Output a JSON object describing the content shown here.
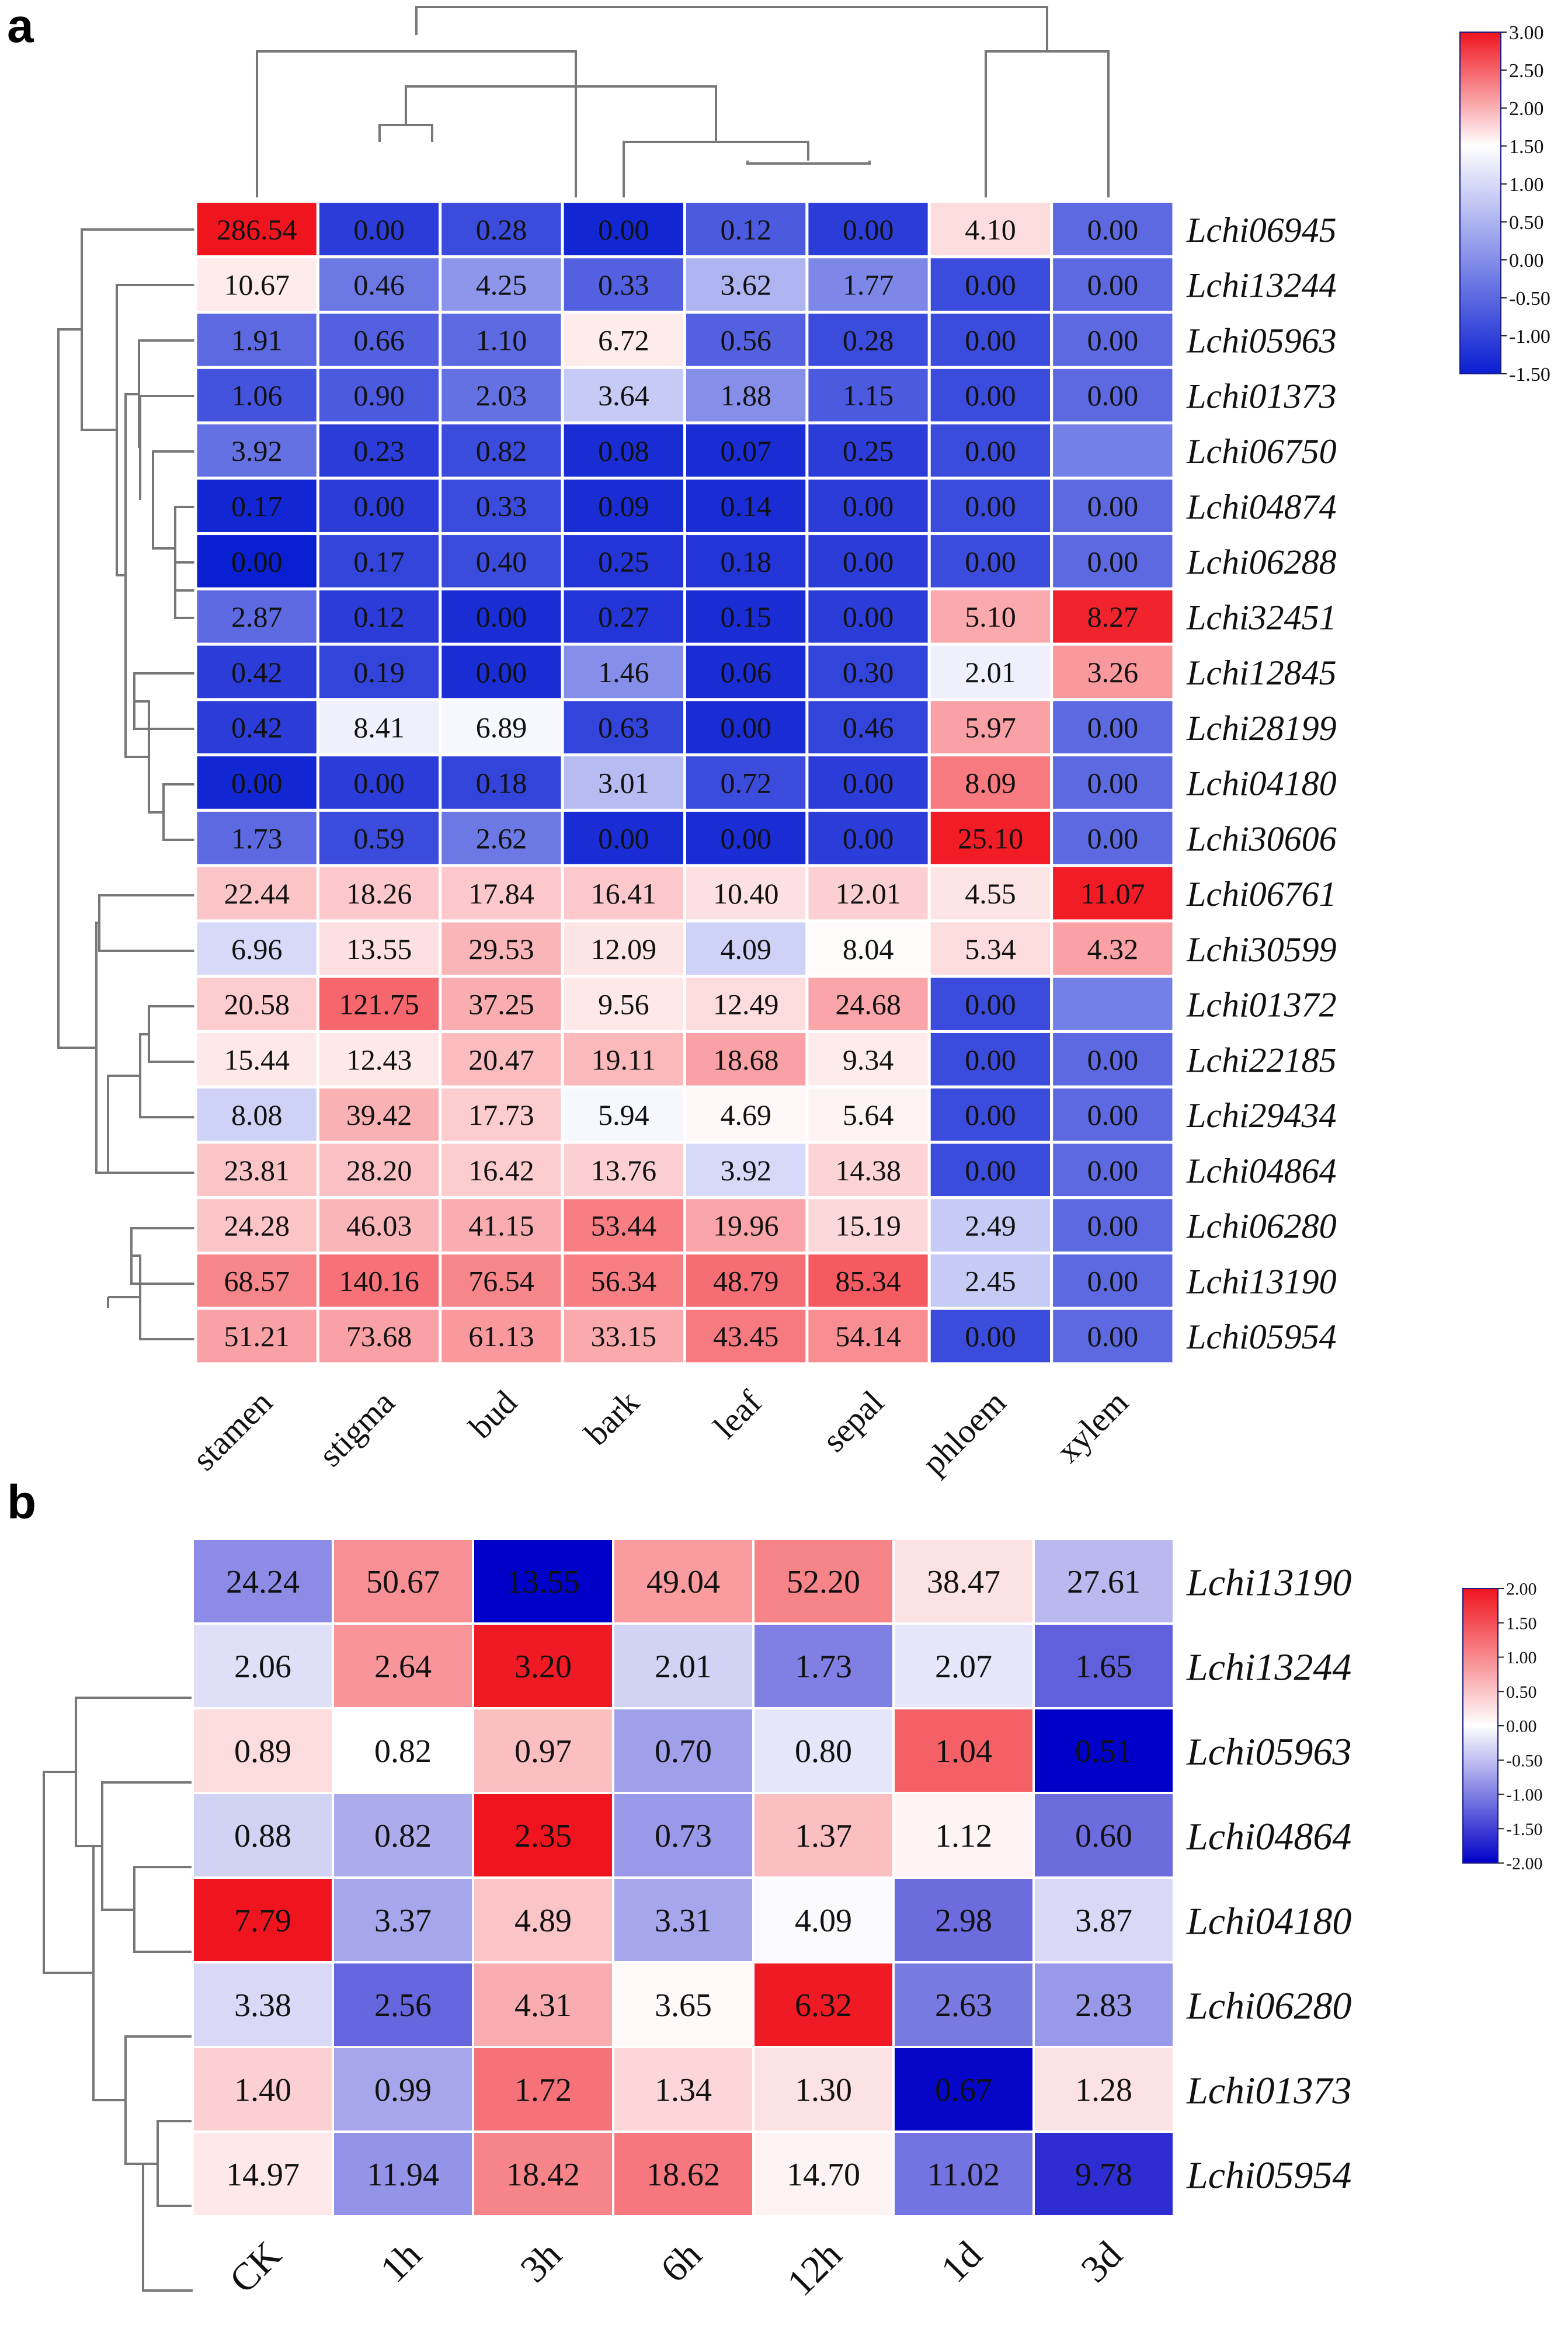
{
  "figure": {
    "panel_a_label": "a",
    "panel_b_label": "b"
  },
  "chart_data": [
    {
      "panel": "a",
      "type": "heatmap",
      "title": "",
      "columns": [
        "stamen",
        "stigma",
        "bud",
        "bark",
        "leaf",
        "sepal",
        "phloem",
        "xylem"
      ],
      "rows": [
        "Lchi06945",
        "Lchi13244",
        "Lchi05963",
        "Lchi01373",
        "Lchi06750",
        "Lchi04874",
        "Lchi06288",
        "Lchi32451",
        "Lchi12845",
        "Lchi28199",
        "Lchi04180",
        "Lchi30606",
        "Lchi06761",
        "Lchi30599",
        "Lchi01372",
        "Lchi22185",
        "Lchi29434",
        "Lchi04864",
        "Lchi06280",
        "Lchi13190",
        "Lchi05954"
      ],
      "labels": [
        [
          "286.54",
          "0.00",
          "0.28",
          "0.00",
          "0.12",
          "0.00",
          "4.10",
          "0.00"
        ],
        [
          "10.67",
          "0.46",
          "4.25",
          "0.33",
          "3.62",
          "1.77",
          "0.00",
          "0.00"
        ],
        [
          "1.91",
          "0.66",
          "1.10",
          "6.72",
          "0.56",
          "0.28",
          "0.00",
          "0.00"
        ],
        [
          "1.06",
          "0.90",
          "2.03",
          "3.64",
          "1.88",
          "1.15",
          "0.00",
          "0.00"
        ],
        [
          "3.92",
          "0.23",
          "0.82",
          "0.08",
          "0.07",
          "0.25",
          "0.00",
          ""
        ],
        [
          "0.17",
          "0.00",
          "0.33",
          "0.09",
          "0.14",
          "0.00",
          "0.00",
          "0.00"
        ],
        [
          "0.00",
          "0.17",
          "0.40",
          "0.25",
          "0.18",
          "0.00",
          "0.00",
          "0.00"
        ],
        [
          "2.87",
          "0.12",
          "0.00",
          "0.27",
          "0.15",
          "0.00",
          "5.10",
          "8.27"
        ],
        [
          "0.42",
          "0.19",
          "0.00",
          "1.46",
          "0.06",
          "0.30",
          "2.01",
          "3.26"
        ],
        [
          "0.42",
          "8.41",
          "6.89",
          "0.63",
          "0.00",
          "0.46",
          "5.97",
          "0.00"
        ],
        [
          "0.00",
          "0.00",
          "0.18",
          "3.01",
          "0.72",
          "0.00",
          "8.09",
          "0.00"
        ],
        [
          "1.73",
          "0.59",
          "2.62",
          "0.00",
          "0.00",
          "0.00",
          "25.10",
          "0.00"
        ],
        [
          "22.44",
          "18.26",
          "17.84",
          "16.41",
          "10.40",
          "12.01",
          "4.55",
          "11.07"
        ],
        [
          "6.96",
          "13.55",
          "29.53",
          "12.09",
          "4.09",
          "8.04",
          "5.34",
          "4.32"
        ],
        [
          "20.58",
          "121.75",
          "37.25",
          "9.56",
          "12.49",
          "24.68",
          "0.00",
          ""
        ],
        [
          "15.44",
          "12.43",
          "20.47",
          "19.11",
          "18.68",
          "9.34",
          "0.00",
          "0.00"
        ],
        [
          "8.08",
          "39.42",
          "17.73",
          "5.94",
          "4.69",
          "5.64",
          "0.00",
          "0.00"
        ],
        [
          "23.81",
          "28.20",
          "16.42",
          "13.76",
          "3.92",
          "14.38",
          "0.00",
          "0.00"
        ],
        [
          "24.28",
          "46.03",
          "41.15",
          "53.44",
          "19.96",
          "15.19",
          "2.49",
          "0.00"
        ],
        [
          "68.57",
          "140.16",
          "76.54",
          "56.34",
          "48.79",
          "85.34",
          "2.45",
          "0.00"
        ],
        [
          "51.21",
          "73.68",
          "61.13",
          "33.15",
          "43.45",
          "54.14",
          "0.00",
          "0.00"
        ]
      ],
      "scaled_values": [
        [
          3.0,
          -1.3,
          -1.2,
          -1.45,
          -1.1,
          -1.3,
          0.45,
          -1.0
        ],
        [
          0.25,
          -0.9,
          -0.7,
          -1.05,
          -0.5,
          -0.8,
          -1.2,
          -1.0
        ],
        [
          -1.0,
          -1.05,
          -1.0,
          0.25,
          -1.05,
          -1.2,
          -1.2,
          -1.0
        ],
        [
          -1.15,
          -1.1,
          -0.95,
          -0.35,
          -0.75,
          -1.1,
          -1.2,
          -1.0
        ],
        [
          -0.95,
          -1.3,
          -1.2,
          -1.4,
          -1.4,
          -1.3,
          -1.2,
          -0.85
        ],
        [
          -1.45,
          -1.3,
          -1.2,
          -1.4,
          -1.4,
          -1.3,
          -1.2,
          -1.0
        ],
        [
          -1.5,
          -1.25,
          -1.2,
          -1.35,
          -1.35,
          -1.3,
          -1.2,
          -1.0
        ],
        [
          -1.0,
          -1.3,
          -1.4,
          -1.35,
          -1.4,
          -1.3,
          1.1,
          2.8
        ],
        [
          -1.3,
          -1.25,
          -1.4,
          -0.75,
          -1.4,
          -1.25,
          -0.1,
          1.3
        ],
        [
          -1.3,
          -0.1,
          -0.05,
          -1.25,
          -1.4,
          -1.25,
          1.2,
          -1.0
        ],
        [
          -1.45,
          -1.3,
          -1.25,
          -0.45,
          -1.2,
          -1.3,
          1.7,
          -1.0
        ],
        [
          -1.0,
          -1.2,
          -0.9,
          -1.4,
          -1.4,
          -1.3,
          2.9,
          -1.0
        ],
        [
          0.75,
          0.7,
          0.7,
          0.7,
          0.4,
          0.6,
          0.35,
          2.9
        ],
        [
          -0.25,
          0.4,
          0.95,
          0.35,
          -0.3,
          0.05,
          0.45,
          1.2
        ],
        [
          0.65,
          1.95,
          1.05,
          0.3,
          0.45,
          1.15,
          -1.2,
          -0.85
        ],
        [
          0.3,
          0.3,
          0.85,
          0.9,
          1.2,
          0.25,
          -1.2,
          -1.0
        ],
        [
          -0.3,
          1.0,
          0.65,
          -0.05,
          0.1,
          0.15,
          -1.2,
          -1.0
        ],
        [
          0.75,
          0.8,
          0.65,
          0.6,
          -0.25,
          0.55,
          -1.2,
          -1.0
        ],
        [
          0.75,
          0.95,
          1.05,
          1.65,
          1.15,
          0.5,
          -0.35,
          -1.0
        ],
        [
          1.55,
          1.8,
          1.55,
          1.65,
          1.85,
          2.1,
          -0.35,
          -1.0
        ],
        [
          1.2,
          1.2,
          1.3,
          1.1,
          1.7,
          1.45,
          -1.2,
          -1.0
        ]
      ],
      "colorbar": {
        "min": -1.5,
        "max": 3.0,
        "ticks": [
          "3.00",
          "2.50",
          "2.00",
          "1.50",
          "1.00",
          "0.50",
          "0.00",
          "-0.50",
          "-1.00",
          "-1.50"
        ],
        "colors": {
          "low": "#0a1ed2",
          "mid": "#ffffff",
          "high": "#f0141e"
        }
      },
      "column_dendrogram": true,
      "row_dendrogram": true
    },
    {
      "panel": "b",
      "type": "heatmap",
      "title": "",
      "columns": [
        "CK",
        "1h",
        "3h",
        "6h",
        "12h",
        "1d",
        "3d"
      ],
      "rows": [
        "Lchi13190",
        "Lchi13244",
        "Lchi05963",
        "Lchi04864",
        "Lchi04180",
        "Lchi06280",
        "Lchi01373",
        "Lchi05954"
      ],
      "labels": [
        [
          "24.24",
          "50.67",
          "13.55",
          "49.04",
          "52.20",
          "38.47",
          "27.61"
        ],
        [
          "2.06",
          "2.64",
          "3.20",
          "2.01",
          "1.73",
          "2.07",
          "1.65"
        ],
        [
          "0.89",
          "0.82",
          "0.97",
          "0.70",
          "0.80",
          "1.04",
          "0.51"
        ],
        [
          "0.88",
          "0.82",
          "2.35",
          "0.73",
          "1.37",
          "1.12",
          "0.60"
        ],
        [
          "7.79",
          "3.37",
          "4.89",
          "3.31",
          "4.09",
          "2.98",
          "3.87"
        ],
        [
          "3.38",
          "2.56",
          "4.31",
          "3.65",
          "6.32",
          "2.63",
          "2.83"
        ],
        [
          "1.40",
          "0.99",
          "1.72",
          "1.34",
          "1.30",
          "0.67",
          "1.28"
        ],
        [
          "14.97",
          "11.94",
          "18.42",
          "18.62",
          "14.70",
          "11.02",
          "9.78"
        ]
      ],
      "scaled_values": [
        [
          -0.9,
          0.95,
          -2.0,
          0.85,
          1.05,
          0.25,
          -0.55
        ],
        [
          -0.25,
          0.9,
          1.95,
          -0.35,
          -1.0,
          -0.2,
          -1.25
        ],
        [
          0.3,
          0.0,
          0.55,
          -0.75,
          -0.2,
          1.35,
          -2.0
        ],
        [
          -0.35,
          -0.65,
          2.0,
          -0.8,
          0.55,
          0.1,
          -1.15
        ],
        [
          2.0,
          -0.7,
          0.5,
          -0.7,
          -0.05,
          -1.15,
          -0.3
        ],
        [
          -0.3,
          -1.2,
          0.7,
          0.05,
          1.95,
          -1.05,
          -0.8
        ],
        [
          0.4,
          -0.7,
          1.2,
          0.35,
          0.25,
          -1.95,
          0.25
        ],
        [
          0.2,
          -0.85,
          1.05,
          1.15,
          0.1,
          -1.1,
          -1.65
        ]
      ],
      "colorbar": {
        "min": -2.0,
        "max": 2.0,
        "ticks": [
          "2.00",
          "1.50",
          "1.00",
          "0.50",
          "0.00",
          "-0.50",
          "-1.00",
          "-1.50",
          "-2.00"
        ],
        "colors": {
          "low": "#0000c8",
          "mid": "#ffffff",
          "high": "#f0141e"
        }
      },
      "column_dendrogram": false,
      "row_dendrogram": true
    }
  ]
}
